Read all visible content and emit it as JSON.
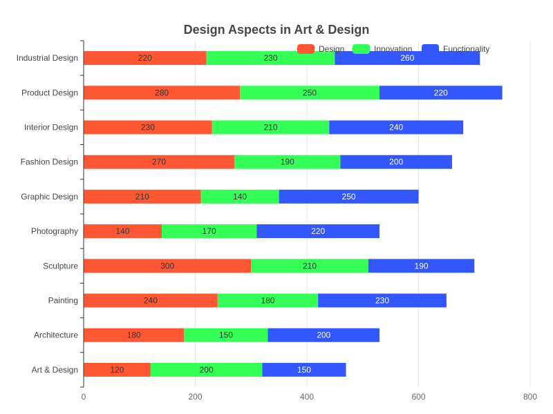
{
  "chart_data": {
    "type": "bar",
    "orientation": "horizontal",
    "stacked": true,
    "title": "Design Aspects in Art & Design",
    "categories": [
      "Industrial Design",
      "Product Design",
      "Interior Design",
      "Fashion Design",
      "Graphic Design",
      "Photography",
      "Sculpture",
      "Painting",
      "Architecture",
      "Art & Design"
    ],
    "series": [
      {
        "name": "Design",
        "color": "#ff5733",
        "values": [
          220,
          280,
          230,
          270,
          210,
          140,
          300,
          240,
          180,
          120
        ]
      },
      {
        "name": "Innovation",
        "color": "#33ff57",
        "values": [
          230,
          250,
          210,
          190,
          140,
          170,
          210,
          180,
          150,
          200
        ]
      },
      {
        "name": "Functionality",
        "color": "#3357ff",
        "values": [
          260,
          220,
          240,
          200,
          250,
          220,
          190,
          230,
          200,
          150
        ]
      }
    ],
    "xlim": [
      0,
      800
    ],
    "xticks": [
      0,
      200,
      400,
      600,
      800
    ],
    "grid": true,
    "legend_position": "top-right"
  }
}
